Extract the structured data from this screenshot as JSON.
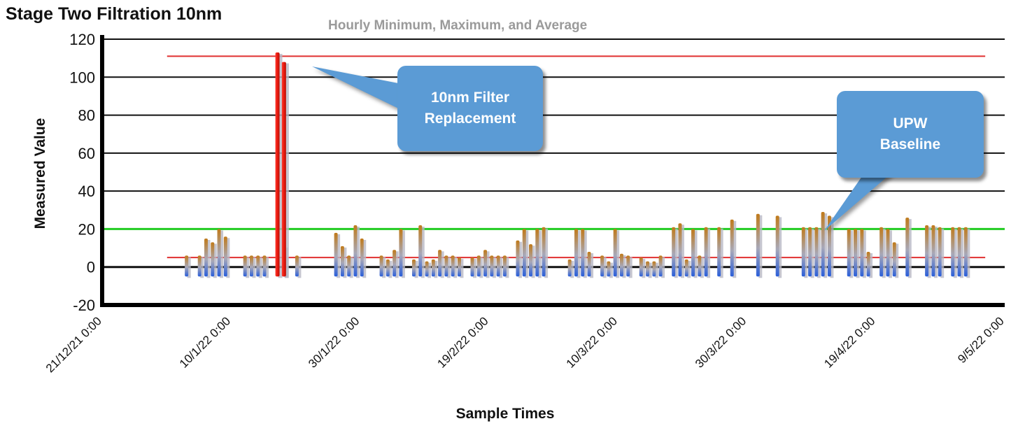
{
  "chart_data": {
    "type": "bar",
    "title": "Stage Two Filtration 10nm",
    "subtitle": "Hourly Minimum, Maximum, and Average",
    "xlabel": "Sample Times",
    "ylabel": "Measured Value",
    "ylim": [
      -20,
      120
    ],
    "yticks": [
      -20,
      0,
      20,
      40,
      60,
      80,
      100,
      120
    ],
    "xlim": [
      "2021-12-21",
      "2022-05-09"
    ],
    "xtick_labels": [
      "21/12/21 0:00",
      "10/1/22 0:00",
      "30/1/22 0:00",
      "19/2/22 0:00",
      "10/3/22 0:00",
      "30/3/22 0:00",
      "19/4/22 0:00",
      "9/5/22 0:00"
    ],
    "grid": true,
    "reference_lines": [
      {
        "value": 111,
        "color": "#e03030",
        "from": "2021-12-31",
        "to": "2022-05-06"
      },
      {
        "value": 5,
        "color": "#e03030",
        "from": "2021-12-31",
        "to": "2022-05-06"
      },
      {
        "value": 20,
        "color": "#22cc22",
        "from": "2021-12-21",
        "to": "2022-05-09"
      }
    ],
    "series": [
      {
        "min": -5,
        "dates": [
          "2022-01-03",
          "2022-01-05",
          "2022-01-06",
          "2022-01-07",
          "2022-01-08",
          "2022-01-09",
          "2022-01-12",
          "2022-01-13",
          "2022-01-14",
          "2022-01-15",
          "2022-01-18",
          "2022-01-20",
          "2022-01-26",
          "2022-01-27",
          "2022-01-28",
          "2022-01-29",
          "2022-01-30",
          "2022-02-02",
          "2022-02-03",
          "2022-02-04",
          "2022-02-05",
          "2022-02-07",
          "2022-02-08",
          "2022-02-09",
          "2022-02-10",
          "2022-02-11",
          "2022-02-12",
          "2022-02-13",
          "2022-02-14",
          "2022-02-16",
          "2022-02-17",
          "2022-02-18",
          "2022-02-19",
          "2022-02-20",
          "2022-02-21",
          "2022-02-23",
          "2022-02-24",
          "2022-02-25",
          "2022-02-26",
          "2022-02-27",
          "2022-03-03",
          "2022-03-04",
          "2022-03-05",
          "2022-03-06",
          "2022-03-08",
          "2022-03-09",
          "2022-03-10",
          "2022-03-11",
          "2022-03-12",
          "2022-03-14",
          "2022-03-15",
          "2022-03-16",
          "2022-03-17",
          "2022-03-19",
          "2022-03-20",
          "2022-03-21",
          "2022-03-22",
          "2022-03-23",
          "2022-03-24",
          "2022-03-26",
          "2022-03-28",
          "2022-04-01",
          "2022-04-04",
          "2022-04-08",
          "2022-04-09",
          "2022-04-10",
          "2022-04-11",
          "2022-04-12",
          "2022-04-15",
          "2022-04-16",
          "2022-04-17",
          "2022-04-18",
          "2022-04-20",
          "2022-04-21",
          "2022-04-22",
          "2022-04-24",
          "2022-04-27",
          "2022-04-28",
          "2022-04-29",
          "2022-05-01",
          "2022-05-02",
          "2022-05-03"
        ],
        "values": [
          6,
          6,
          15,
          13,
          20,
          16,
          6,
          6,
          6,
          6,
          11,
          6,
          18,
          11,
          6,
          22,
          15,
          6,
          4,
          9,
          20,
          4,
          22,
          3,
          4,
          9,
          6,
          6,
          5,
          5,
          6,
          9,
          6,
          6,
          6,
          14,
          20,
          12,
          20,
          21,
          4,
          20,
          20,
          8,
          6,
          3,
          20,
          7,
          6,
          5,
          3,
          3,
          6,
          21,
          23,
          4,
          20,
          6,
          21,
          21,
          25,
          28,
          27,
          21,
          21,
          21,
          29,
          27,
          20,
          20,
          20,
          8,
          21,
          20,
          13,
          26,
          22,
          22,
          21,
          21,
          21,
          21
        ]
      },
      {
        "name": "",
        "dates": [
          "2022-01-17",
          "2022-01-18"
        ],
        "values": [
          113,
          108
        ],
        "min": -5
      }
    ]
  },
  "callouts": {
    "filter": {
      "line1": "10nm Filter",
      "line2": "Replacement"
    },
    "baseline": {
      "line1": "UPW",
      "line2": "Baseline"
    }
  }
}
